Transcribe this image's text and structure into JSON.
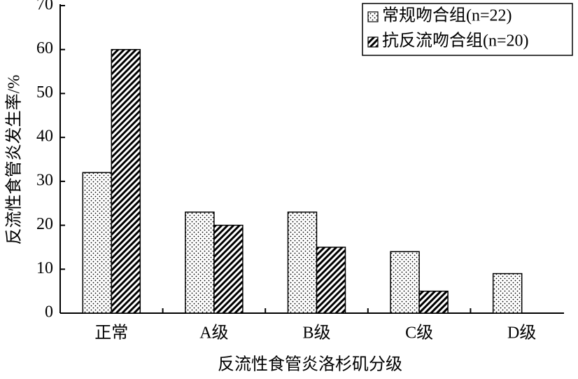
{
  "chart_data": {
    "type": "bar",
    "xlabel": "反流性食管炎洛杉矶分级",
    "ylabel": "反流性食管炎发生率/%",
    "categories": [
      "正常",
      "A级",
      "B级",
      "C级",
      "D级"
    ],
    "series": [
      {
        "name": "常规吻合组(n=22)",
        "color": "#000000",
        "pattern": "dots",
        "values": [
          32,
          23,
          23,
          14,
          9
        ]
      },
      {
        "name": "抗反流吻合组(n=20)",
        "color": "#000000",
        "pattern": "hatch",
        "values": [
          60,
          20,
          15,
          5,
          0
        ]
      }
    ],
    "ylim": [
      0,
      70
    ],
    "yticks": [
      0,
      10,
      20,
      30,
      40,
      50,
      60,
      70
    ],
    "legend": "upper right"
  }
}
